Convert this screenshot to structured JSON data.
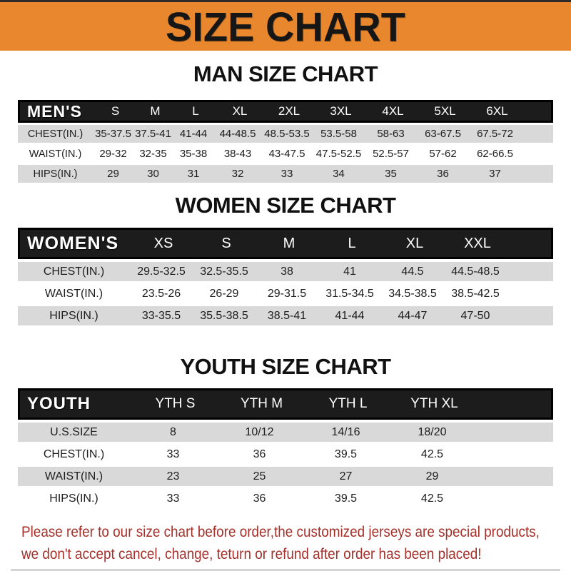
{
  "banner": {
    "title": "SIZE CHART",
    "bg_color": "#E8872D",
    "text_color": "#161616"
  },
  "sections": [
    {
      "heading": "MAN SIZE CHART",
      "table": {
        "header_label": "MEN'S",
        "columns": [
          "S",
          "M",
          "L",
          "XL",
          "2XL",
          "3XL",
          "4XL",
          "5XL",
          "6XL"
        ],
        "rows": [
          {
            "label": "CHEST(IN.)",
            "values": [
              "35-37.5",
              "37.5-41",
              "41-44",
              "44-48.5",
              "48.5-53.5",
              "53.5-58",
              "58-63",
              "63-67.5",
              "67.5-72"
            ]
          },
          {
            "label": "WAIST(IN.)",
            "values": [
              "29-32",
              "32-35",
              "35-38",
              "38-43",
              "43-47.5",
              "47.5-52.5",
              "52.5-57",
              "57-62",
              "62-66.5"
            ]
          },
          {
            "label": "HIPS(IN.)",
            "values": [
              "29",
              "30",
              "31",
              "32",
              "33",
              "34",
              "35",
              "36",
              "37"
            ]
          }
        ]
      }
    },
    {
      "heading": "WOMEN SIZE CHART",
      "table": {
        "header_label": "WOMEN'S",
        "columns": [
          "XS",
          "S",
          "M",
          "L",
          "XL",
          "XXL"
        ],
        "rows": [
          {
            "label": "CHEST(IN.)",
            "values": [
              "29.5-32.5",
              "32.5-35.5",
              "38",
              "41",
              "44.5",
              "44.5-48.5"
            ]
          },
          {
            "label": "WAIST(IN.)",
            "values": [
              "23.5-26",
              "26-29",
              "29-31.5",
              "31.5-34.5",
              "34.5-38.5",
              "38.5-42.5"
            ]
          },
          {
            "label": "HIPS(IN.)",
            "values": [
              "33-35.5",
              "35.5-38.5",
              "38.5-41",
              "41-44",
              "44-47",
              "47-50"
            ]
          }
        ]
      }
    },
    {
      "heading": "YOUTH SIZE CHART",
      "table": {
        "header_label": "YOUTH",
        "columns": [
          "YTH S",
          "YTH M",
          "YTH L",
          "YTH XL"
        ],
        "rows": [
          {
            "label": "U.S.SIZE",
            "values": [
              "8",
              "10/12",
              "14/16",
              "18/20"
            ]
          },
          {
            "label": "CHEST(IN.)",
            "values": [
              "33",
              "36",
              "39.5",
              "42.5"
            ]
          },
          {
            "label": "WAIST(IN.)",
            "values": [
              "23",
              "25",
              "27",
              "29"
            ]
          },
          {
            "label": "HIPS(IN.)",
            "values": [
              "33",
              "36",
              "39.5",
              "42.5"
            ]
          }
        ]
      }
    }
  ],
  "footer": {
    "line1": "Please refer to our size chart before order,the customized jerseys are special products,",
    "line2": "we don't accept cancel, change, teturn or refund after order has been placed!",
    "text_color": "#A6302A"
  },
  "colors": {
    "header_bar_bg": "#1C1C1C",
    "header_bar_border": "#000000",
    "row_gray": "#D9D9D9",
    "row_white": "#FFFFFF"
  }
}
